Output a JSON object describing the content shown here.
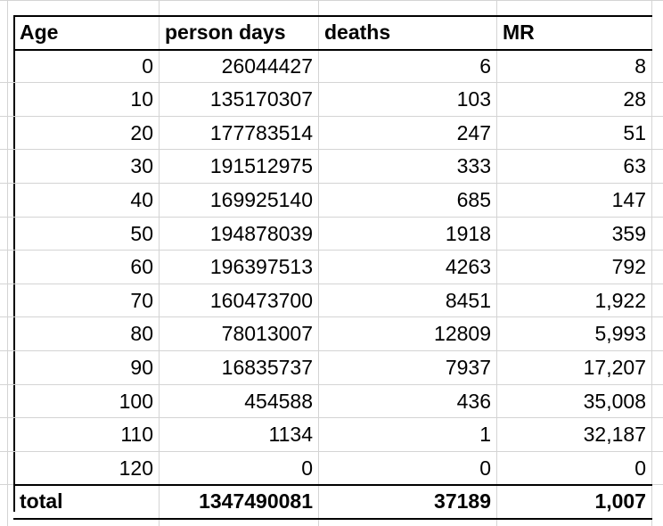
{
  "headers": [
    "Age",
    "person days",
    "deaths",
    "MR"
  ],
  "rows": [
    [
      "0",
      "26044427",
      "6",
      "8"
    ],
    [
      "10",
      "135170307",
      "103",
      "28"
    ],
    [
      "20",
      "177783514",
      "247",
      "51"
    ],
    [
      "30",
      "191512975",
      "333",
      "63"
    ],
    [
      "40",
      "169925140",
      "685",
      "147"
    ],
    [
      "50",
      "194878039",
      "1918",
      "359"
    ],
    [
      "60",
      "196397513",
      "4263",
      "792"
    ],
    [
      "70",
      "160473700",
      "8451",
      "1,922"
    ],
    [
      "80",
      "78013007",
      "12809",
      "5,993"
    ],
    [
      "90",
      "16835737",
      "7937",
      "17,207"
    ],
    [
      "100",
      "454588",
      "436",
      "35,008"
    ],
    [
      "110",
      "1134",
      "1",
      "32,187"
    ],
    [
      "120",
      "0",
      "0",
      "0"
    ]
  ],
  "total": [
    "total",
    "1347490081",
    "37189",
    "1,007"
  ]
}
